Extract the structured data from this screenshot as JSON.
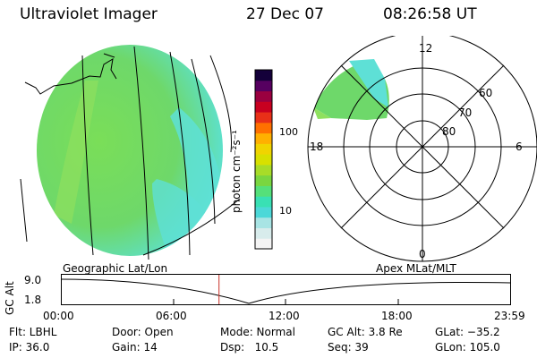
{
  "header": {
    "instrument": "Ultraviolet Imager",
    "date": "27 Dec 07",
    "time": "08:26:58 UT"
  },
  "colorbar": {
    "unit": "photon cm⁻²s⁻¹",
    "tick_labels": [
      "100",
      "10"
    ],
    "colors": [
      "#f4f4f4",
      "#d8ecec",
      "#a8e4e4",
      "#4cd8d8",
      "#39e0b4",
      "#55e07a",
      "#7ad640",
      "#a8dc28",
      "#d8e000",
      "#f0d400",
      "#ffb000",
      "#ff7000",
      "#e83018",
      "#c80020",
      "#9a0040",
      "#560060",
      "#14003a"
    ]
  },
  "geo_panel": {
    "label": "Geographic Lat/Lon",
    "colors": {
      "green": "#6ed86a",
      "light_green": "#8fe05e",
      "cyan": "#5ee0d6"
    }
  },
  "polar_panel": {
    "label": "Apex MLat/MLT",
    "mlt_labels": {
      "top": "12",
      "left": "18",
      "right": "6",
      "bottom": "0"
    },
    "mlat_labels": [
      "80",
      "70",
      "60"
    ]
  },
  "altitude_plot": {
    "ylabel": "GC Alt",
    "ytick_labels": [
      "9.0",
      "1.8"
    ],
    "xtick_labels": [
      "00:00",
      "06:00",
      "12:00",
      "18:00",
      "23:59"
    ],
    "marker_hour": 8.45,
    "marker_color": "#c83228"
  },
  "info": {
    "row1": [
      "Flt: LBHL",
      "Door: Open",
      "Mode: Normal",
      "GC Alt: 3.8 Re",
      "GLat: −35.2"
    ],
    "row2": [
      "IP: 36.0",
      "Gain: 14",
      "Dsp:   10.5",
      "Seq: 39",
      "GLon: 105.0"
    ]
  }
}
